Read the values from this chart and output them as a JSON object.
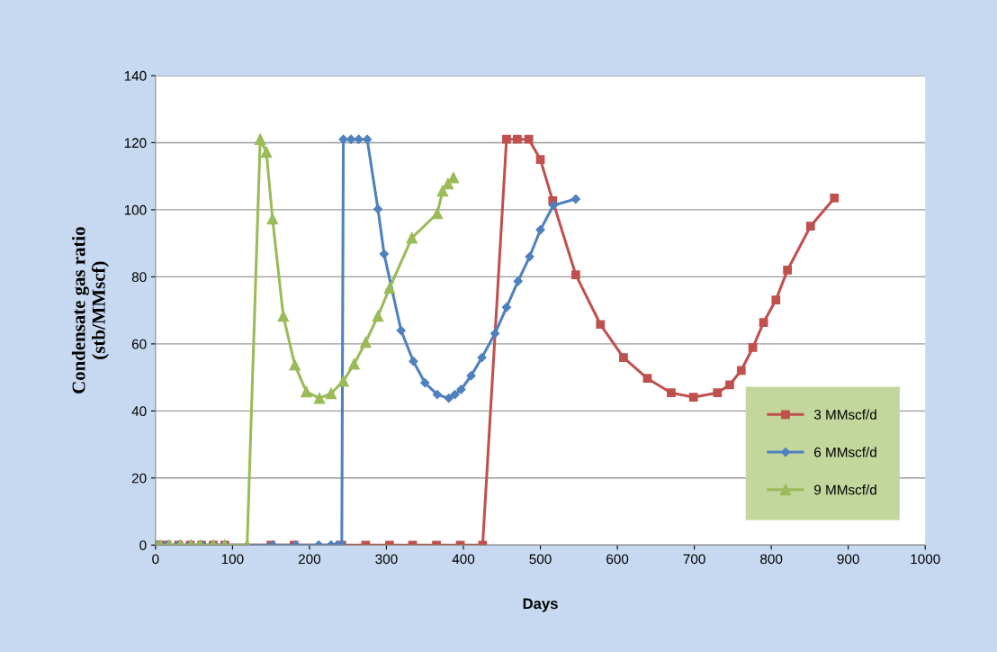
{
  "chart_data": {
    "type": "line",
    "xlabel": "Days",
    "ylabel": "Condensate gas ratio\n(stb/MMscf)",
    "xlim": [
      0,
      1000
    ],
    "xticks": [
      0,
      100,
      200,
      300,
      400,
      500,
      600,
      700,
      800,
      900,
      1000
    ],
    "ylim": [
      0,
      140
    ],
    "yticks": [
      0,
      20,
      40,
      60,
      80,
      100,
      120,
      140
    ],
    "grid": "y",
    "legend": "bottom right",
    "series": [
      {
        "name": "3 MMscf/d",
        "color": "#c0504d",
        "marker": "square",
        "x": [
          0,
          5,
          15,
          30,
          45,
          60,
          75,
          90,
          150,
          180,
          242,
          273,
          304,
          334,
          365,
          396,
          425,
          456,
          470,
          485,
          500,
          516,
          546,
          578,
          608,
          639,
          670,
          699,
          730,
          746,
          761,
          776,
          790,
          806,
          821,
          851,
          882
        ],
        "values": [
          0,
          0,
          0,
          0,
          0,
          0,
          0,
          0,
          0,
          0,
          0,
          0,
          0,
          0,
          0,
          0,
          0,
          121,
          121,
          121,
          115,
          102.7,
          80.6,
          65.8,
          55.9,
          49.7,
          45.4,
          44.1,
          45.4,
          47.8,
          52.1,
          58.9,
          66.4,
          73.1,
          82,
          95.1,
          103.5
        ]
      },
      {
        "name": "6 MMscf/d",
        "color": "#4f81bd",
        "marker": "diamond",
        "x": [
          0,
          5,
          15,
          30,
          45,
          60,
          75,
          90,
          152,
          182,
          212,
          228,
          236,
          242,
          244,
          254,
          264,
          275,
          289,
          297,
          319,
          335,
          350,
          366,
          381,
          389,
          397,
          410,
          424,
          441,
          456,
          471,
          486,
          500,
          517,
          546
        ],
        "values": [
          0,
          0,
          0,
          0,
          0,
          0,
          0,
          0,
          0,
          0,
          0,
          0,
          0,
          0,
          121,
          121,
          121,
          121,
          100.2,
          86.8,
          64,
          54.8,
          48.4,
          44.9,
          43.8,
          44.9,
          46.4,
          50.5,
          55.9,
          63.1,
          70.9,
          78.7,
          86,
          94,
          101.3,
          103.2
        ]
      },
      {
        "name": "9 MMscf/d",
        "color": "#9bbb59",
        "marker": "triangle",
        "x": [
          0,
          6,
          18,
          32,
          46,
          58,
          75,
          90,
          119,
          136,
          144,
          152,
          166,
          181,
          196,
          213,
          228,
          244,
          258,
          273,
          289,
          304,
          333,
          366,
          373,
          380,
          387
        ],
        "values": [
          0,
          0,
          0,
          0,
          0,
          0,
          0,
          0,
          0,
          121,
          117.2,
          97.3,
          68.3,
          53.7,
          45.7,
          43.8,
          45.2,
          48.9,
          54,
          60.5,
          68.3,
          76.6,
          91.6,
          98.9,
          105.6,
          107.8,
          109.6
        ]
      }
    ]
  }
}
